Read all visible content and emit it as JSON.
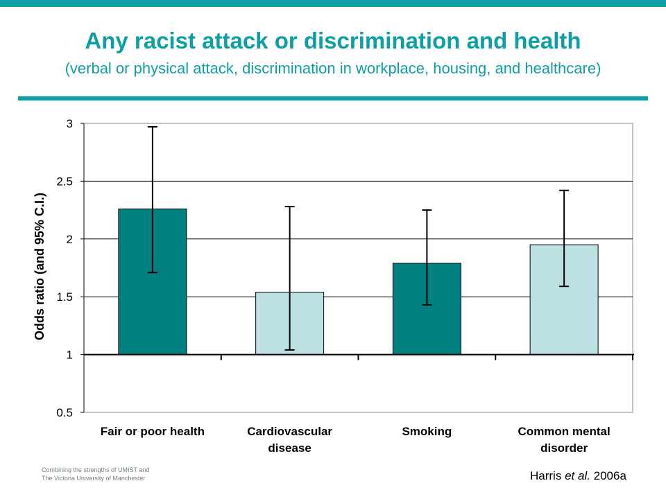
{
  "header": {
    "title": "Any racist attack or discrimination and health",
    "subtitle": "(verbal or physical attack, discrimination in workplace, housing, and healthcare)"
  },
  "footer": {
    "line1": "Combining the strengths of UMIST and",
    "line2": "The Victoria University of Manchester",
    "citation_author": "Harris ",
    "citation_etal": "et al.",
    "citation_year": " 2006a"
  },
  "colors": {
    "accent": "#0e9ea6",
    "dark_teal": "#008080",
    "light_teal": "#bde0e3"
  },
  "chart_data": {
    "type": "bar",
    "title": "",
    "xlabel": "",
    "ylabel": "Odds ratio (and 95% C.I.)",
    "categories": [
      [
        "Fair or poor health"
      ],
      [
        "Cardiovascular",
        "disease"
      ],
      [
        "Smoking"
      ],
      [
        "Common mental",
        "disorder"
      ]
    ],
    "values": [
      2.26,
      1.54,
      1.79,
      1.95
    ],
    "ci_low": [
      1.71,
      1.04,
      1.43,
      1.59
    ],
    "ci_high": [
      2.97,
      2.28,
      2.25,
      2.42
    ],
    "bar_colors": [
      "#008080",
      "#bde0e3",
      "#008080",
      "#bde0e3"
    ],
    "ylim": [
      0.5,
      3
    ],
    "yticks": [
      3,
      2.5,
      2,
      1.5,
      1,
      0.5
    ],
    "baseline": 1,
    "grid": true,
    "legend": "none"
  }
}
